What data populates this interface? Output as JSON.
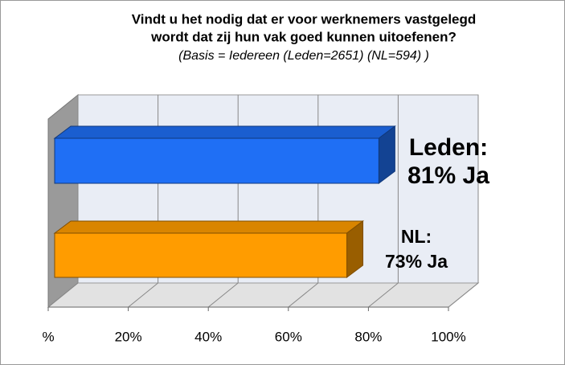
{
  "chart_data": {
    "type": "bar3d",
    "title": [
      "Vindt u het nodig dat er voor werknemers vastgelegd",
      "wordt dat zij hun vak goed kunnen uitoefenen?"
    ],
    "subtitle": "(Basis = Iedereen (Leden=2651) (NL=594) )",
    "values": [
      81,
      73
    ],
    "value_labels": [
      [
        "Leden:",
        "81% Ja"
      ],
      [
        "NL:",
        "73% Ja"
      ]
    ],
    "colors": [
      "#1f6ff5",
      "#ff9c00"
    ],
    "xlim": [
      0,
      100
    ],
    "xticks": [
      {
        "value": 0,
        "label": "%"
      },
      {
        "value": 20,
        "label": "20%"
      },
      {
        "value": 40,
        "label": "40%"
      },
      {
        "value": 60,
        "label": "60%"
      },
      {
        "value": 80,
        "label": "80%"
      },
      {
        "value": 100,
        "label": "100%"
      }
    ],
    "grid": true
  }
}
